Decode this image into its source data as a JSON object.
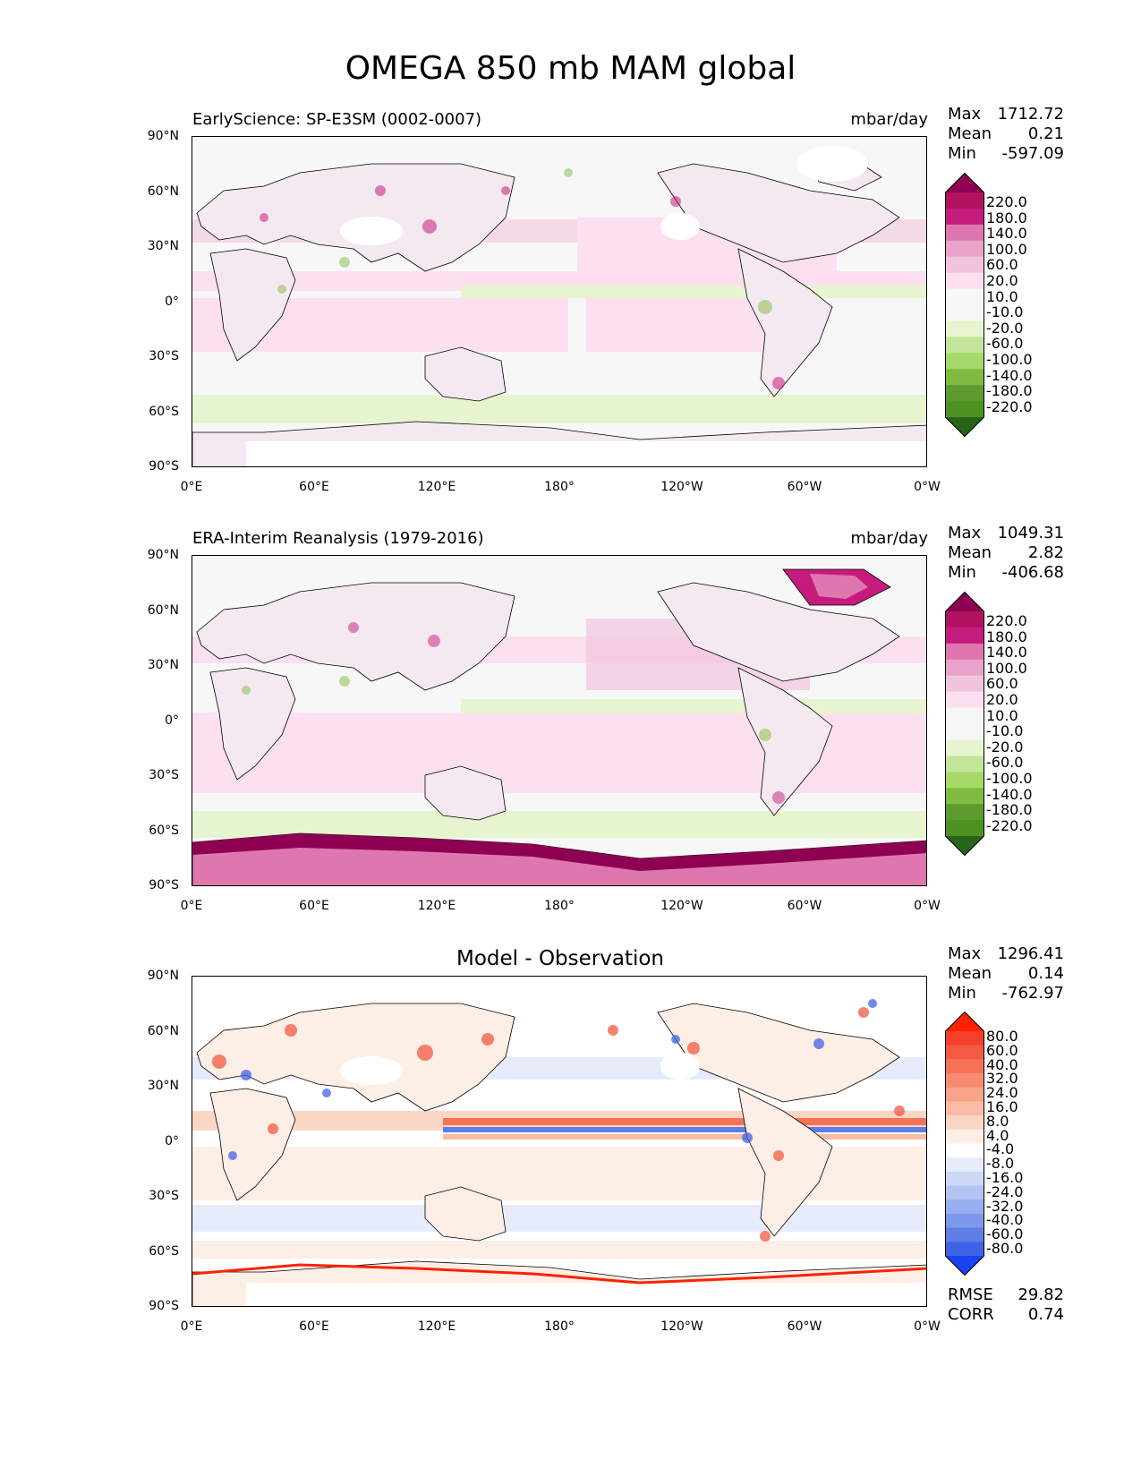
{
  "figure": {
    "title": "OMEGA 850 mb MAM global"
  },
  "axes": {
    "lat_ticks": [
      "90°N",
      "60°N",
      "30°N",
      "0°",
      "30°S",
      "60°S",
      "90°S"
    ],
    "lon_ticks": [
      "0°E",
      "60°E",
      "120°E",
      "180°",
      "120°W",
      "60°W",
      "0°W"
    ]
  },
  "panels": [
    {
      "title": "EarlyScience: SP-E3SM (0002-0007)",
      "units": "mbar/day",
      "stats": {
        "max_label": "Max",
        "max": "1712.72",
        "mean_label": "Mean",
        "mean": "0.21",
        "min_label": "Min",
        "min": "-597.09"
      },
      "colorbar": {
        "labels": [
          "220.0",
          "180.0",
          "140.0",
          "100.0",
          "60.0",
          "20.0",
          "10.0",
          "-10.0",
          "-20.0",
          "-60.0",
          "-100.0",
          "-140.0",
          "-180.0",
          "-220.0"
        ],
        "colors": [
          "#8e0152",
          "#b0125f",
          "#c51b7d",
          "#de77ae",
          "#e9a3c9",
          "#f1c4de",
          "#fde0ef",
          "#f7f7f7",
          "#f7f7f7",
          "#e6f5d0",
          "#c2e59a",
          "#a6d96a",
          "#7fbc41",
          "#5b9b2f",
          "#4d9221",
          "#276419"
        ]
      }
    },
    {
      "title": "ERA-Interim Reanalysis (1979-2016)",
      "units": "mbar/day",
      "stats": {
        "max_label": "Max",
        "max": "1049.31",
        "mean_label": "Mean",
        "mean": "2.82",
        "min_label": "Min",
        "min": "-406.68"
      },
      "colorbar": {
        "labels": [
          "220.0",
          "180.0",
          "140.0",
          "100.0",
          "60.0",
          "20.0",
          "10.0",
          "-10.0",
          "-20.0",
          "-60.0",
          "-100.0",
          "-140.0",
          "-180.0",
          "-220.0"
        ],
        "colors": [
          "#8e0152",
          "#b0125f",
          "#c51b7d",
          "#de77ae",
          "#e9a3c9",
          "#f1c4de",
          "#fde0ef",
          "#f7f7f7",
          "#f7f7f7",
          "#e6f5d0",
          "#c2e59a",
          "#a6d96a",
          "#7fbc41",
          "#5b9b2f",
          "#4d9221",
          "#276419"
        ]
      }
    },
    {
      "title": "Model - Observation",
      "units": "",
      "stats": {
        "max_label": "Max",
        "max": "1296.41",
        "mean_label": "Mean",
        "mean": "0.14",
        "min_label": "Min",
        "min": "-762.97"
      },
      "extra": {
        "rmse_label": "RMSE",
        "rmse": "29.82",
        "corr_label": "CORR",
        "corr": "0.74"
      },
      "colorbar": {
        "labels": [
          "80.0",
          "60.0",
          "40.0",
          "32.0",
          "24.0",
          "16.0",
          "8.0",
          "4.0",
          "-4.0",
          "-8.0",
          "-16.0",
          "-24.0",
          "-32.0",
          "-40.0",
          "-60.0",
          "-80.0"
        ],
        "colors": [
          "#ff2200",
          "#f4402a",
          "#f25a42",
          "#f47358",
          "#f68b70",
          "#f8a488",
          "#fabca2",
          "#fcd6c4",
          "#fdeee6",
          "#ffffff",
          "#e6ecfb",
          "#cdd8f6",
          "#b3c4f2",
          "#99aeee",
          "#7d97ea",
          "#5f7ee6",
          "#3f63e6",
          "#1a44f0"
        ]
      }
    }
  ]
}
